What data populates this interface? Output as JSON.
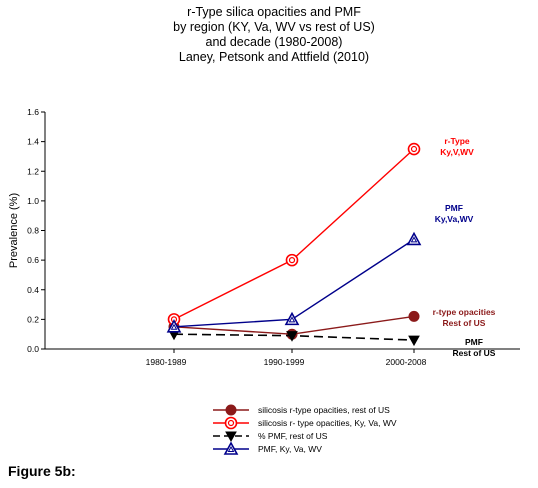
{
  "chart_data": {
    "type": "line",
    "title": [
      "r-Type silica opacities and PMF",
      "by region (KY, Va, WV vs rest of US)",
      "and decade (1980-2008)",
      "Laney, Petsonk and Attfield (2010)"
    ],
    "ylabel": "Prevalence (%)",
    "xlabel": "",
    "ylim": [
      0,
      1.6
    ],
    "yticks": [
      "0.0",
      "0.2",
      "0.4",
      "0.6",
      "0.8",
      "1.0",
      "1.2",
      "1.4",
      "1.6"
    ],
    "categories": [
      "1980-1989",
      "1990-1999",
      "2000-2008"
    ],
    "series": [
      {
        "name": "silicosis r-type opacities, rest of US",
        "values": [
          0.15,
          0.1,
          0.22
        ],
        "color": "#8b1a1a",
        "marker": "filled-circle",
        "dash": false,
        "annotation": [
          "r-type opacities",
          "Rest of US"
        ],
        "annotation_color": "#8b1a1a"
      },
      {
        "name": "silicosis r- type opacities, Ky, Va, WV",
        "values": [
          0.2,
          0.6,
          1.35
        ],
        "color": "#ff0000",
        "marker": "open-circle",
        "dash": false,
        "annotation": [
          "r-Type",
          "Ky,V,WV"
        ],
        "annotation_color": "#ff0000"
      },
      {
        "name": "% PMF, rest of US",
        "values": [
          0.1,
          0.09,
          0.06
        ],
        "color": "#000000",
        "marker": "filled-triangle-down",
        "dash": true,
        "annotation": [
          "PMF",
          "Rest of US"
        ],
        "annotation_color": "#000000"
      },
      {
        "name": "PMF, Ky, Va, WV",
        "values": [
          0.15,
          0.2,
          0.74
        ],
        "color": "#00008b",
        "marker": "open-triangle",
        "dash": false,
        "annotation": [
          "PMF",
          "Ky,Va,WV"
        ],
        "annotation_color": "#00008b"
      }
    ],
    "legend_position": "bottom-center",
    "grid": false
  },
  "figure_label": "Figure 5b:"
}
